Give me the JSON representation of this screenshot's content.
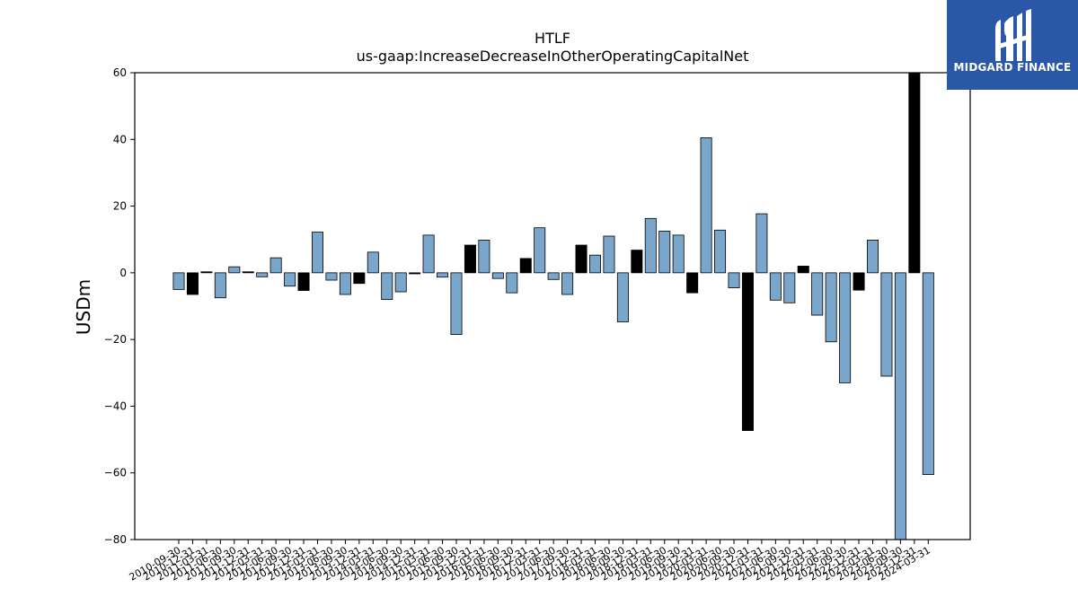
{
  "brand": {
    "name": "MIDGARD FINANCE",
    "bg_color": "#2a57a8"
  },
  "chart_data": {
    "type": "bar",
    "title": "HTLF",
    "subtitle": "us-gaap:IncreaseDecreaseInOtherOperatingCapitalNet",
    "xlabel": "",
    "ylabel": "USDm",
    "ylim": [
      -80,
      60
    ],
    "yticks": [
      60,
      40,
      20,
      0,
      -20,
      -40,
      -60,
      -80
    ],
    "grid": false,
    "bar_color": "#7aa6cc",
    "highlight_color": "#000000",
    "categories": [
      "2010-09-30",
      "2010-12-31",
      "2011-03-31",
      "2011-06-30",
      "2011-09-30",
      "2011-12-31",
      "2012-03-31",
      "2012-06-30",
      "2012-09-30",
      "2012-12-31",
      "2013-03-31",
      "2013-06-30",
      "2013-09-30",
      "2013-12-31",
      "2014-03-31",
      "2014-06-30",
      "2014-09-30",
      "2014-12-31",
      "2015-03-31",
      "2015-06-30",
      "2015-09-30",
      "2015-12-31",
      "2016-03-31",
      "2016-06-30",
      "2016-09-30",
      "2016-12-31",
      "2017-03-31",
      "2017-06-30",
      "2017-09-30",
      "2017-12-31",
      "2018-03-31",
      "2018-06-30",
      "2018-09-30",
      "2018-12-31",
      "2019-03-31",
      "2019-06-30",
      "2019-09-30",
      "2019-12-31",
      "2020-03-31",
      "2020-06-30",
      "2020-09-30",
      "2020-12-31",
      "2021-03-31",
      "2021-06-30",
      "2021-09-30",
      "2021-12-31",
      "2022-03-31",
      "2022-06-30",
      "2022-09-30",
      "2022-12-31",
      "2023-03-31",
      "2023-06-30",
      "2023-09-30",
      "2023-12-31",
      "2024-03-31"
    ],
    "values": [
      -5,
      -6.5,
      0.3,
      -7.5,
      1.8,
      0.3,
      -1.2,
      4.5,
      -4,
      -5.3,
      12.2,
      -2.2,
      -6.5,
      -3.2,
      6.2,
      -8,
      -5.7,
      -0.3,
      11.3,
      -1.3,
      -18.5,
      8.3,
      9.8,
      -1.7,
      -6,
      4.3,
      13.5,
      -2,
      -6.5,
      8.3,
      5.3,
      11,
      -14.7,
      6.8,
      16.3,
      12.5,
      11.3,
      -6,
      40.5,
      12.8,
      -4.5,
      -47.3,
      17.7,
      -8.2,
      -9,
      2,
      -12.7,
      -20.7,
      -33,
      -5.2,
      9.8,
      -31,
      -80,
      60,
      -60.5
    ],
    "highlighted": [
      false,
      true,
      true,
      false,
      false,
      true,
      false,
      false,
      false,
      true,
      false,
      false,
      false,
      true,
      false,
      false,
      false,
      true,
      false,
      false,
      false,
      true,
      false,
      false,
      false,
      true,
      false,
      false,
      false,
      true,
      false,
      false,
      false,
      true,
      false,
      false,
      false,
      true,
      false,
      false,
      false,
      true,
      false,
      false,
      false,
      true,
      false,
      false,
      false,
      true,
      false,
      false,
      false,
      true,
      false
    ]
  }
}
